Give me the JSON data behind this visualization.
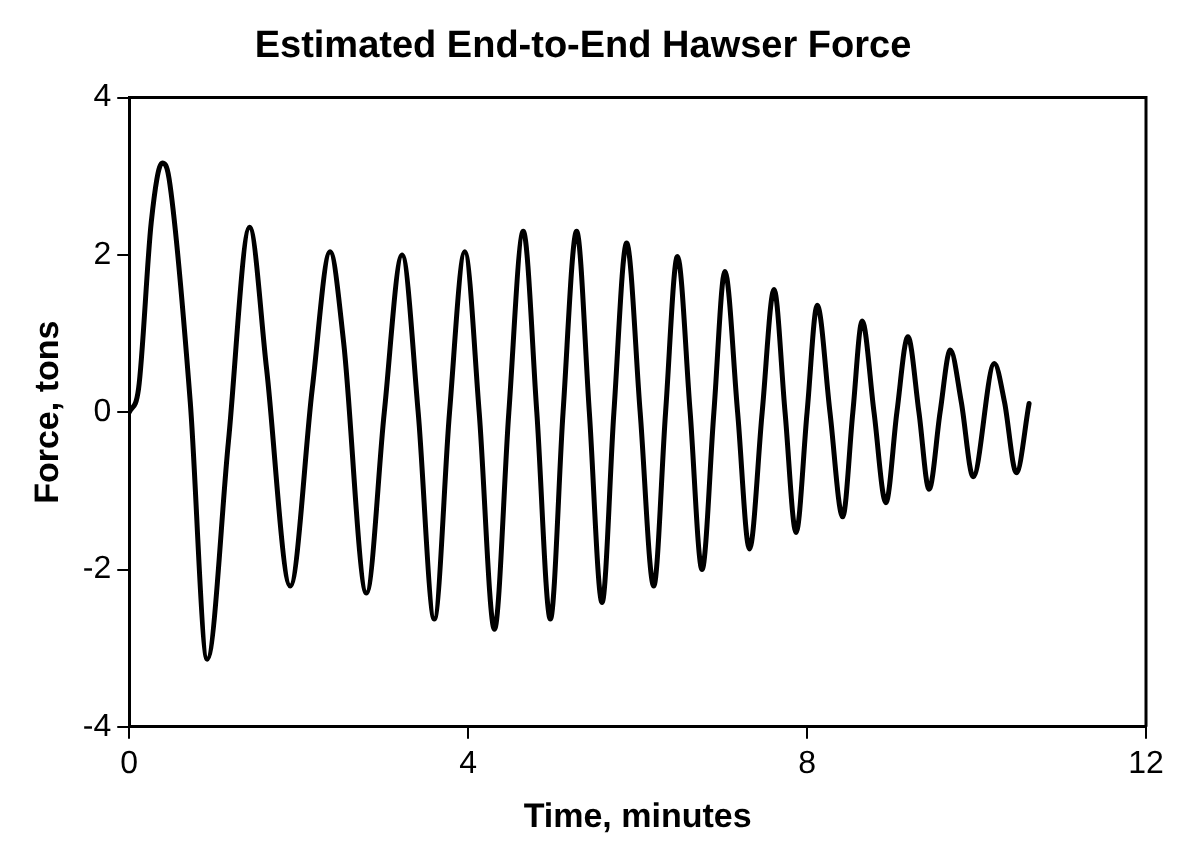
{
  "chart_data": {
    "type": "line",
    "title": "Estimated End-to-End Hawser Force",
    "xlabel": "Time, minutes",
    "ylabel": "Force, tons",
    "x": [
      0,
      0.11,
      0.26,
      0.39,
      0.47,
      0.72,
      0.92,
      1.17,
      1.42,
      1.62,
      1.9,
      2.16,
      2.37,
      2.53,
      2.8,
      3.01,
      3.22,
      3.41,
      3.6,
      3.78,
      3.96,
      4.13,
      4.31,
      4.48,
      4.65,
      4.81,
      4.97,
      5.12,
      5.28,
      5.43,
      5.58,
      5.72,
      5.87,
      6.03,
      6.19,
      6.33,
      6.47,
      6.62,
      6.76,
      6.9,
      7.03,
      7.18,
      7.32,
      7.47,
      7.61,
      7.74,
      7.87,
      8.0,
      8.12,
      8.27,
      8.42,
      8.54,
      8.65,
      8.79,
      8.93,
      9.06,
      9.19,
      9.32,
      9.44,
      9.57,
      9.69,
      9.82,
      9.96,
      10.21,
      10.33,
      10.47,
      10.62
    ],
    "series": [
      {
        "color": "#000000",
        "values": [
          0,
          0.3,
          2.42,
          3.17,
          2.97,
          0.13,
          -3.14,
          -0.38,
          2.35,
          0.56,
          -2.21,
          0.3,
          2.04,
          0.89,
          -2.3,
          0,
          2.0,
          0,
          -2.63,
          0,
          2.04,
          0,
          -2.76,
          0,
          2.3,
          0,
          -2.63,
          0,
          2.3,
          0,
          -2.42,
          0,
          2.15,
          0,
          -2.21,
          0,
          1.98,
          0,
          -2.0,
          0,
          1.79,
          0,
          -1.74,
          0,
          1.56,
          0,
          -1.53,
          0,
          1.36,
          0,
          -1.33,
          0,
          1.16,
          0,
          -1.15,
          0,
          0.96,
          0,
          -0.98,
          0,
          0.79,
          0.13,
          -0.82,
          0.62,
          0.13,
          -0.77,
          0.11
        ]
      }
    ],
    "xlim": [
      0,
      12
    ],
    "xticks": [
      0,
      4,
      8,
      12
    ],
    "ylim": [
      -4,
      4
    ],
    "yticks": [
      -4,
      -2,
      0,
      2,
      4
    ],
    "grid": false,
    "legend": false,
    "marker": "none",
    "line_style": "solid"
  }
}
